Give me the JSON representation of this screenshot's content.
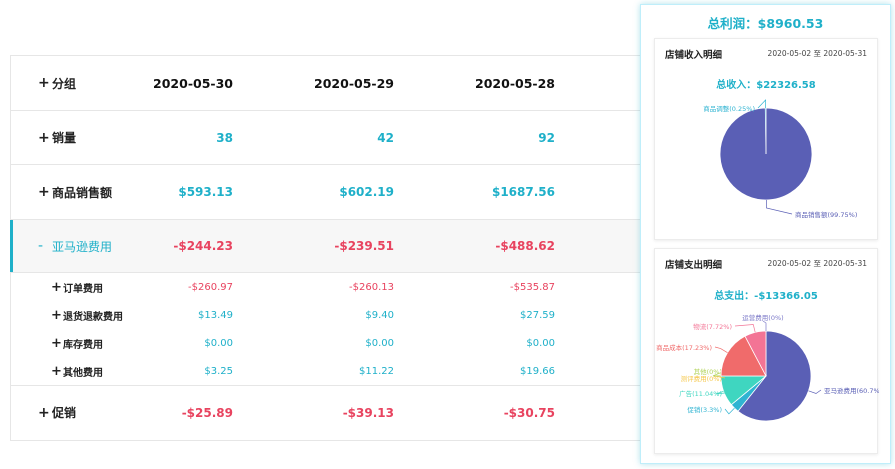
{
  "table": {
    "header": {
      "label": "分组",
      "dates": [
        "2020-05-30",
        "2020-05-29",
        "2020-05-28"
      ]
    },
    "rows": [
      {
        "label": "销量",
        "values": [
          "38",
          "42",
          "92"
        ]
      },
      {
        "label": "商品销售额",
        "values": [
          "$593.13",
          "$602.19",
          "$1687.56"
        ]
      },
      {
        "label": "亚马逊费用",
        "values": [
          "-$244.23",
          "-$239.51",
          "-$488.62"
        ]
      },
      {
        "label": "订单费用",
        "values": [
          "-$260.97",
          "-$260.13",
          "-$535.87"
        ]
      },
      {
        "label": "退货退款费用",
        "values": [
          "$13.49",
          "$9.40",
          "$27.59"
        ]
      },
      {
        "label": "库存费用",
        "values": [
          "$0.00",
          "$0.00",
          "$0.00"
        ]
      },
      {
        "label": "其他费用",
        "values": [
          "$3.25",
          "$11.22",
          "$19.66"
        ]
      },
      {
        "label": "促销",
        "values": [
          "-$25.89",
          "-$39.13",
          "-$30.75"
        ]
      }
    ]
  },
  "icons": {
    "plus": "+",
    "minus": "-"
  },
  "panel": {
    "total_profit": "总利润：$8960.53",
    "income": {
      "title": "店铺收入明细",
      "range": "2020-05-02 至 2020-05-31",
      "total": "总收入：$22326.58",
      "slices": [
        {
          "label": "商品销售额(99.75%)",
          "value": 99.75,
          "color": "#5a5fb5"
        },
        {
          "label": "商品调整(0.25%)",
          "value": 0.25,
          "color": "#30b4d2"
        }
      ]
    },
    "expense": {
      "title": "店铺支出明细",
      "range": "2020-05-02 至 2020-05-31",
      "total": "总支出：-$13366.05",
      "slices": [
        {
          "label": "亚马逊费用(60.7%)",
          "value": 60.7,
          "color": "#5a5fb5"
        },
        {
          "label": "促销(3.3%)",
          "value": 3.3,
          "color": "#30b4d2"
        },
        {
          "label": "广告(11.04%)",
          "value": 11.04,
          "color": "#3fd6c0"
        },
        {
          "label": "测评费用(0%)",
          "value": 0,
          "color": "#f5c74a"
        },
        {
          "label": "其他(0%)",
          "value": 0,
          "color": "#b2d35a"
        },
        {
          "label": "商品成本(17.23%)",
          "value": 17.23,
          "color": "#f06b6b"
        },
        {
          "label": "物流(7.72%)",
          "value": 7.72,
          "color": "#f37495"
        },
        {
          "label": "运营费用(0%)",
          "value": 0,
          "color": "#7b78c8"
        }
      ]
    }
  }
}
